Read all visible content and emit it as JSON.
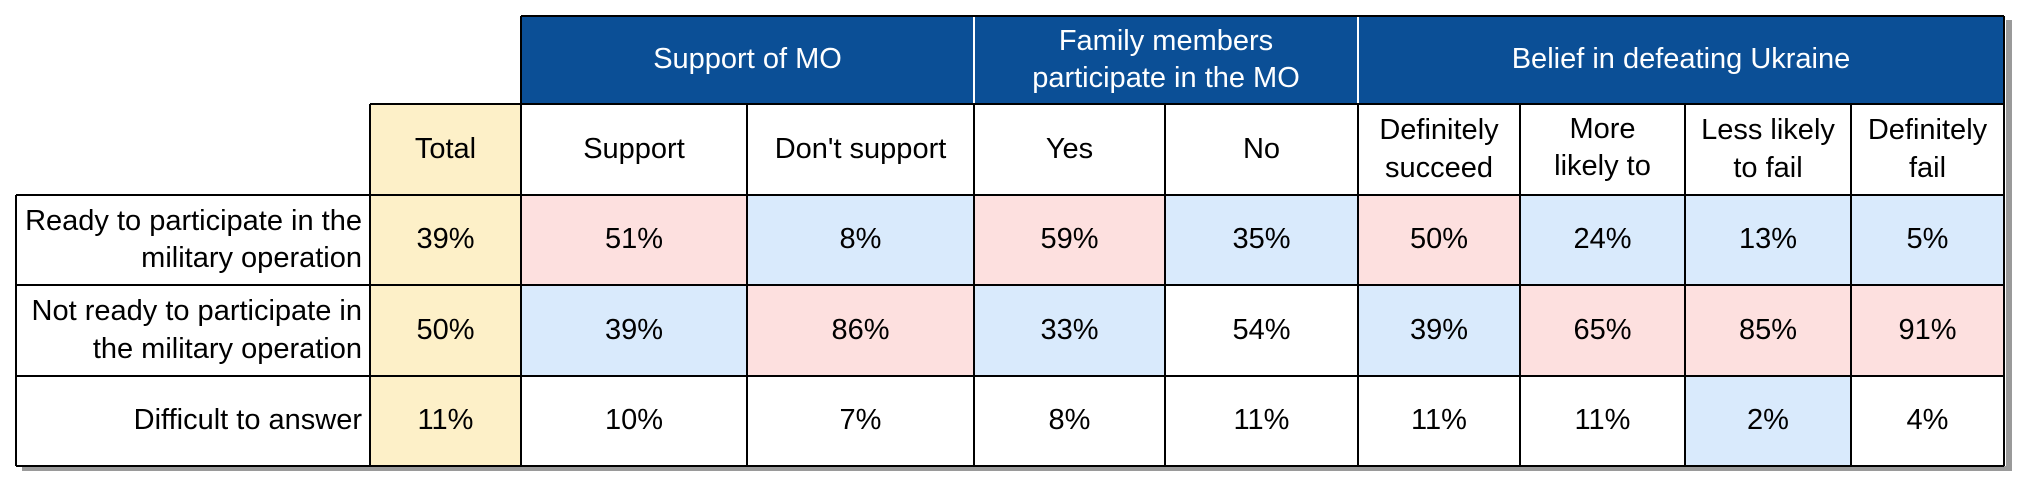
{
  "header_groups": {
    "support": "Support of MO",
    "family": "Family members participate in the MO",
    "belief": "Belief in defeating Ukraine"
  },
  "columns": {
    "total": "Total",
    "support": "Support",
    "dont_support": "Don't support",
    "yes": "Yes",
    "no": "No",
    "definitely_succeed": "Definitely succeed",
    "more_likely": "More likely to",
    "less_likely": "Less likely to fail",
    "definitely_fail": "Definitely fail"
  },
  "rows": [
    {
      "label": "Ready to participate in the military operation",
      "values": [
        "39%",
        "51%",
        "8%",
        "59%",
        "35%",
        "50%",
        "24%",
        "13%",
        "5%"
      ],
      "colors": [
        "#fdf0c8",
        "#fde0df",
        "#d9eafc",
        "#fde0df",
        "#d9eafc",
        "#fde0df",
        "#d9eafc",
        "#d9eafc",
        "#d9eafc"
      ]
    },
    {
      "label": "Not ready to participate in the military operation",
      "values": [
        "50%",
        "39%",
        "86%",
        "33%",
        "54%",
        "39%",
        "65%",
        "85%",
        "91%"
      ],
      "colors": [
        "#fdf0c8",
        "#d9eafc",
        "#fde0df",
        "#d9eafc",
        "#ffffff",
        "#d9eafc",
        "#fde0df",
        "#fde0df",
        "#fde0df"
      ]
    },
    {
      "label": "Difficult to answer",
      "values": [
        "11%",
        "10%",
        "7%",
        "8%",
        "11%",
        "11%",
        "11%",
        "2%",
        "4%"
      ],
      "colors": [
        "#fdf0c8",
        "#ffffff",
        "#ffffff",
        "#ffffff",
        "#ffffff",
        "#ffffff",
        "#ffffff",
        "#d9eafc",
        "#ffffff"
      ]
    }
  ]
}
